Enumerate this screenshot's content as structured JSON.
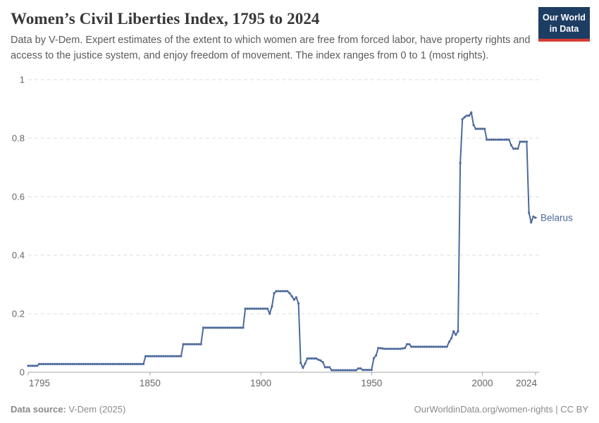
{
  "header": {
    "title": "Women’s Civil Liberties Index, 1795 to 2024",
    "subtitle": "Data by V-Dem. Expert estimates of the extent to which women are free from forced labor, have property rights and access to the justice system, and enjoy freedom of movement. The index ranges from 0 to 1 (most rights)."
  },
  "logo": {
    "line1": "Our World",
    "line2": "in Data",
    "bg_color": "#1d3d63",
    "accent_color": "#d73c34"
  },
  "chart_data": {
    "type": "line",
    "title": "Women’s Civil Liberties Index, 1795 to 2024",
    "xlabel": "",
    "ylabel": "",
    "xlim": [
      1795,
      2024
    ],
    "ylim": [
      0,
      1
    ],
    "x_ticks": [
      1795,
      1850,
      1900,
      1950,
      2000,
      2024
    ],
    "y_ticks": [
      0,
      0.2,
      0.4,
      0.6,
      0.8,
      1
    ],
    "grid": "dashed-horizontal",
    "legend_position": "inline-end-of-line",
    "entity_label": "Belarus",
    "marker_style": "dots-every-year",
    "series": [
      {
        "name": "Belarus",
        "color": "#4c6a9c",
        "points": [
          [
            1795,
            0.022
          ],
          [
            1799,
            0.022
          ],
          [
            1800,
            0.028
          ],
          [
            1847,
            0.028
          ],
          [
            1848,
            0.055
          ],
          [
            1864,
            0.055
          ],
          [
            1865,
            0.096
          ],
          [
            1873,
            0.096
          ],
          [
            1874,
            0.152
          ],
          [
            1892,
            0.152
          ],
          [
            1893,
            0.217
          ],
          [
            1903,
            0.217
          ],
          [
            1904,
            0.2
          ],
          [
            1905,
            0.225
          ],
          [
            1906,
            0.27
          ],
          [
            1907,
            0.277
          ],
          [
            1912,
            0.277
          ],
          [
            1913,
            0.27
          ],
          [
            1914,
            0.26
          ],
          [
            1915,
            0.248
          ],
          [
            1916,
            0.256
          ],
          [
            1917,
            0.235
          ],
          [
            1918,
            0.032
          ],
          [
            1919,
            0.015
          ],
          [
            1920,
            0.03
          ],
          [
            1921,
            0.047
          ],
          [
            1925,
            0.047
          ],
          [
            1926,
            0.043
          ],
          [
            1927,
            0.04
          ],
          [
            1928,
            0.034
          ],
          [
            1929,
            0.017
          ],
          [
            1931,
            0.017
          ],
          [
            1932,
            0.007
          ],
          [
            1943,
            0.007
          ],
          [
            1944,
            0.013
          ],
          [
            1945,
            0.013
          ],
          [
            1946,
            0.008
          ],
          [
            1950,
            0.008
          ],
          [
            1951,
            0.048
          ],
          [
            1952,
            0.057
          ],
          [
            1953,
            0.083
          ],
          [
            1956,
            0.08
          ],
          [
            1963,
            0.08
          ],
          [
            1965,
            0.083
          ],
          [
            1966,
            0.096
          ],
          [
            1967,
            0.096
          ],
          [
            1968,
            0.087
          ],
          [
            1984,
            0.087
          ],
          [
            1985,
            0.104
          ],
          [
            1986,
            0.116
          ],
          [
            1987,
            0.14
          ],
          [
            1988,
            0.128
          ],
          [
            1989,
            0.14
          ],
          [
            1990,
            0.715
          ],
          [
            1991,
            0.865
          ],
          [
            1992,
            0.872
          ],
          [
            1993,
            0.877
          ],
          [
            1994,
            0.877
          ],
          [
            1995,
            0.888
          ],
          [
            1996,
            0.845
          ],
          [
            1997,
            0.832
          ],
          [
            2001,
            0.832
          ],
          [
            2002,
            0.795
          ],
          [
            2012,
            0.795
          ],
          [
            2013,
            0.776
          ],
          [
            2014,
            0.764
          ],
          [
            2016,
            0.764
          ],
          [
            2017,
            0.788
          ],
          [
            2020,
            0.788
          ],
          [
            2021,
            0.545
          ],
          [
            2022,
            0.512
          ],
          [
            2023,
            0.532
          ],
          [
            2024,
            0.528
          ]
        ]
      }
    ]
  },
  "footer": {
    "source_label": "Data source:",
    "source_value": "V-Dem (2025)",
    "credit": "OurWorldinData.org/women-rights | CC BY"
  },
  "colors": {
    "axis": "#a5a5a5",
    "grid": "#dedede",
    "tick_text": "#666666",
    "line": "#4c6a9c"
  }
}
